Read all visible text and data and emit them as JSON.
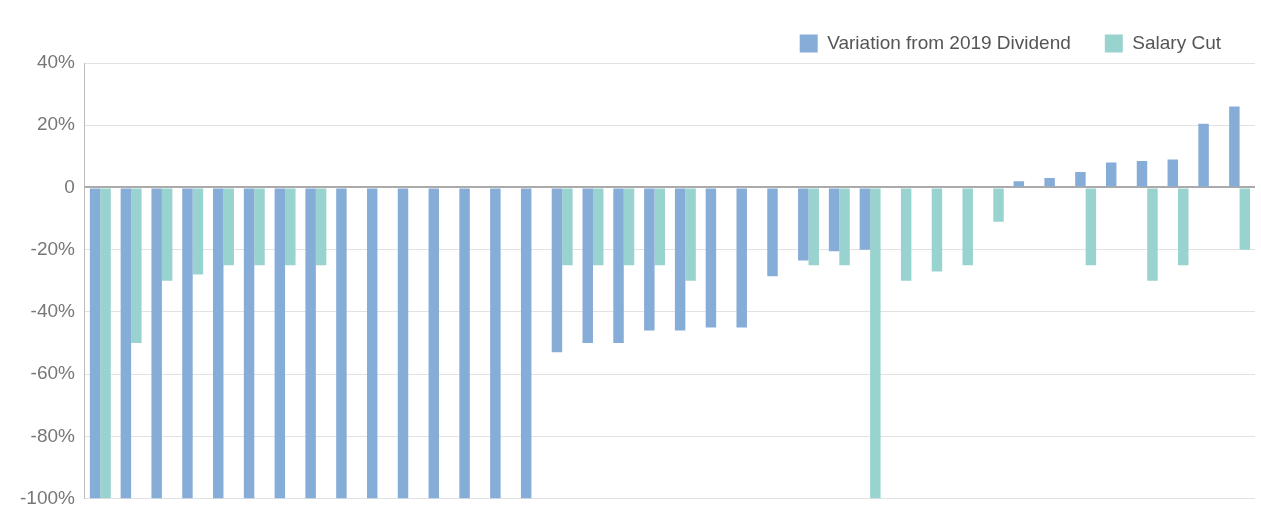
{
  "chart_data": {
    "type": "bar",
    "categories": [
      null,
      null,
      null,
      null,
      null,
      null,
      null,
      null,
      null,
      null,
      null,
      null,
      null,
      null,
      null,
      null,
      null,
      null,
      null,
      null,
      null,
      null,
      null,
      null,
      null,
      null,
      null,
      null,
      null,
      null,
      null,
      null,
      null,
      null,
      null,
      null,
      null,
      null
    ],
    "series": [
      {
        "name": "Variation from 2019 Dividend",
        "color": "#86acd8",
        "values": [
          -100,
          -100,
          -100,
          -100,
          -100,
          -100,
          -100,
          -100,
          -100,
          -100,
          -100,
          -100,
          -100,
          -100,
          -100,
          -53,
          -50,
          -50,
          -46,
          -46,
          -45,
          -45,
          -28.5,
          -23.5,
          -20.5,
          -20,
          null,
          null,
          null,
          null,
          2,
          3,
          5,
          8,
          8.5,
          9,
          20.5,
          26
        ]
      },
      {
        "name": "Salary Cut",
        "color": "#99d3cf",
        "values": [
          -100,
          -50,
          -30,
          -28,
          -25,
          -25,
          -25,
          -25,
          null,
          null,
          null,
          null,
          null,
          null,
          null,
          -25,
          -25,
          -25,
          -25,
          -30,
          null,
          null,
          null,
          -25,
          -25,
          -100,
          -30,
          -27,
          -25,
          -11,
          null,
          null,
          -25,
          null,
          -30,
          -25,
          null,
          -20
        ]
      }
    ],
    "ylim": [
      -100,
      40
    ],
    "yticks": [
      {
        "value": -100,
        "label": "-100%"
      },
      {
        "value": -80,
        "label": "-80%"
      },
      {
        "value": -60,
        "label": "-60%"
      },
      {
        "value": -40,
        "label": "-40%"
      },
      {
        "value": -20,
        "label": "-20%"
      },
      0,
      {
        "value": 20,
        "label": "20%"
      },
      {
        "value": 40,
        "label": "40%"
      }
    ],
    "grid": "y",
    "legend": "top right"
  }
}
